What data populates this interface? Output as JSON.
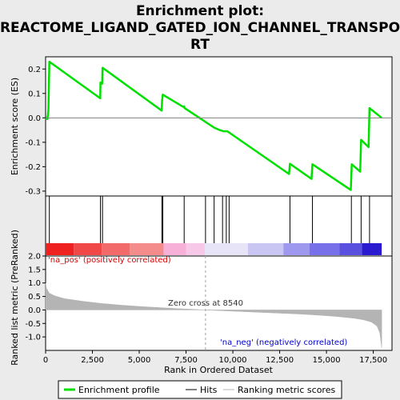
{
  "chart_data": {
    "type": "line",
    "title_lines": [
      "Enrichment plot:",
      "REACTOME_LIGAND_GATED_ION_CHANNEL_TRANSPO",
      "RT"
    ],
    "xlabel": "Rank in Ordered Dataset",
    "ylabel_top": "Enrichment score (ES)",
    "ylabel_bottom": "Ranked list metric (PreRanked)",
    "xlim": [
      0,
      18500
    ],
    "x_ticks": [
      0,
      2500,
      5000,
      7500,
      10000,
      12500,
      15000,
      17500
    ],
    "x_tick_labels": [
      "0",
      "2,500",
      "5,000",
      "7,500",
      "10,000",
      "12,500",
      "15,000",
      "17,500"
    ],
    "es_ylim": [
      -0.32,
      0.25
    ],
    "es_ticks": [
      -0.3,
      -0.2,
      -0.1,
      0.0,
      0.1,
      0.2
    ],
    "es_tick_labels": [
      "-0.3",
      "-0.2",
      "-0.1",
      "0.0",
      "0.1",
      "0.2"
    ],
    "metric_ylim": [
      -1.5,
      2.0
    ],
    "metric_ticks": [
      -1.0,
      -0.5,
      0.0,
      0.5,
      1.0,
      1.5,
      2.0
    ],
    "metric_tick_labels": [
      "-1.0",
      "-0.5",
      "0.0",
      "0.5",
      "1.0",
      "1.5",
      "2.0"
    ],
    "enrichment_profile": [
      [
        0,
        0.0
      ],
      [
        100,
        -0.005
      ],
      [
        150,
        0.03
      ],
      [
        200,
        0.23
      ],
      [
        2920,
        0.08
      ],
      [
        2930,
        0.145
      ],
      [
        3020,
        0.14
      ],
      [
        3040,
        0.205
      ],
      [
        6200,
        0.03
      ],
      [
        6220,
        0.07
      ],
      [
        6260,
        0.095
      ],
      [
        7350,
        0.045
      ],
      [
        7400,
        0.047
      ],
      [
        7420,
        0.04
      ],
      [
        9000,
        -0.04
      ],
      [
        9300,
        -0.05
      ],
      [
        9500,
        -0.055
      ],
      [
        9700,
        -0.055
      ],
      [
        9800,
        -0.06
      ],
      [
        13000,
        -0.23
      ],
      [
        13050,
        -0.188
      ],
      [
        14200,
        -0.25
      ],
      [
        14250,
        -0.19
      ],
      [
        16300,
        -0.295
      ],
      [
        16350,
        -0.19
      ],
      [
        16800,
        -0.22
      ],
      [
        16850,
        -0.09
      ],
      [
        17250,
        -0.12
      ],
      [
        17300,
        0.04
      ],
      [
        17950,
        0.0
      ]
    ],
    "hits": [
      200,
      2930,
      3040,
      6210,
      6260,
      7400,
      8540,
      9000,
      9450,
      9650,
      9800,
      13050,
      14250,
      16330,
      16850,
      17300
    ],
    "metric_curve": [
      [
        0,
        1.0
      ],
      [
        50,
        0.8
      ],
      [
        200,
        0.62
      ],
      [
        500,
        0.52
      ],
      [
        1000,
        0.42
      ],
      [
        2000,
        0.32
      ],
      [
        3000,
        0.24
      ],
      [
        4000,
        0.18
      ],
      [
        5000,
        0.13
      ],
      [
        6000,
        0.09
      ],
      [
        7000,
        0.05
      ],
      [
        8000,
        0.02
      ],
      [
        8540,
        0.0
      ],
      [
        9500,
        -0.03
      ],
      [
        10500,
        -0.06
      ],
      [
        11500,
        -0.09
      ],
      [
        12500,
        -0.12
      ],
      [
        13500,
        -0.15
      ],
      [
        14500,
        -0.19
      ],
      [
        15500,
        -0.24
      ],
      [
        16500,
        -0.31
      ],
      [
        17000,
        -0.37
      ],
      [
        17400,
        -0.45
      ],
      [
        17700,
        -0.6
      ],
      [
        17850,
        -0.85
      ],
      [
        17950,
        -1.4
      ]
    ],
    "zero_cross": 8540,
    "zero_cross_label": "Zero cross at 8540",
    "pos_label": "'na_pos' (positively correlated)",
    "neg_label": "'na_neg' (negatively correlated)",
    "legend": [
      "Enrichment profile",
      "Hits",
      "Ranking metric scores"
    ],
    "colors": {
      "profile": "#00e000",
      "hits": "#000000",
      "metric": "#b4b4b4",
      "pos_text": "#dd0000",
      "neg_text": "#0000cc",
      "zero_line": "#a0a0a0"
    },
    "heat_band": [
      {
        "from": 0,
        "to": 1500,
        "color": "#ee2020"
      },
      {
        "from": 1500,
        "to": 3000,
        "color": "#f04848"
      },
      {
        "from": 3000,
        "to": 4500,
        "color": "#f26a6a"
      },
      {
        "from": 4500,
        "to": 6300,
        "color": "#f48c8c"
      },
      {
        "from": 6300,
        "to": 7500,
        "color": "#f7b0d8"
      },
      {
        "from": 7500,
        "to": 8500,
        "color": "#f7c8e8"
      },
      {
        "from": 8500,
        "to": 10800,
        "color": "#e8e4f8"
      },
      {
        "from": 10800,
        "to": 12700,
        "color": "#cac6f4"
      },
      {
        "from": 12700,
        "to": 14100,
        "color": "#9e98ee"
      },
      {
        "from": 14100,
        "to": 15700,
        "color": "#7870e8"
      },
      {
        "from": 15700,
        "to": 16900,
        "color": "#5a50e0"
      },
      {
        "from": 16900,
        "to": 17950,
        "color": "#2a1ad0"
      }
    ]
  }
}
